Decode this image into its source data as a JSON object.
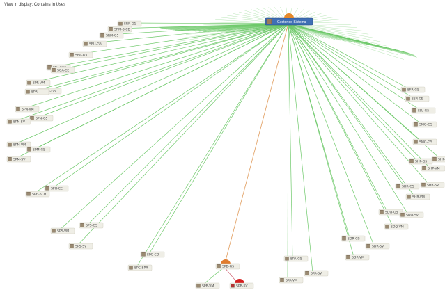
{
  "view": {
    "label": "View in display: Contains in Uses"
  },
  "root": {
    "label": "Gestor do Sistema",
    "status_color": "#e4892a",
    "box_color": "#3f6fb5"
  },
  "colors": {
    "edge": "#6ec96a",
    "edge_highlight": "#e3a46a",
    "edge_child": "#d06070",
    "status_orange": "#e07c2e",
    "status_red": "#d62020",
    "node_fill": "#efeee6",
    "node_border": "#c9c6b8"
  },
  "nodes": [
    {
      "id": "n1",
      "label": "SRR-G1"
    },
    {
      "id": "n2",
      "label": "SRM-8-CD"
    },
    {
      "id": "n3",
      "label": "SRM-G5"
    },
    {
      "id": "n4",
      "label": "SRU-G5"
    },
    {
      "id": "n5",
      "label": "SRA-G5"
    },
    {
      "id": "n6",
      "label": "SRA-VAF"
    },
    {
      "id": "n7",
      "label": "SGA-CE"
    },
    {
      "id": "n8",
      "label": "SPR-VM"
    },
    {
      "id": "n9",
      "label": "SPR-G5"
    },
    {
      "id": "n10",
      "label": "SPR"
    },
    {
      "id": "n11",
      "label": "SPN-VM"
    },
    {
      "id": "n12",
      "label": "SPN-G5"
    },
    {
      "id": "n13",
      "label": "SPN-SV"
    },
    {
      "id": "n14",
      "label": "SPM-VM"
    },
    {
      "id": "n15",
      "label": "SPM-G5"
    },
    {
      "id": "n16",
      "label": "SPM-SV"
    },
    {
      "id": "n17",
      "label": "SPH-CE"
    },
    {
      "id": "n18",
      "label": "SPH-SCH"
    },
    {
      "id": "n19",
      "label": "SPS-G5"
    },
    {
      "id": "n20",
      "label": "SPS-VM"
    },
    {
      "id": "n21",
      "label": "SPS-SV"
    },
    {
      "id": "n22",
      "label": "SPC-CD"
    },
    {
      "id": "n23",
      "label": "SPC-SPR"
    },
    {
      "id": "n24",
      "label": "SPB-G5",
      "status": "orange"
    },
    {
      "id": "n25",
      "label": "SPB-VM"
    },
    {
      "id": "n26",
      "label": "SPB-SV",
      "status": "red"
    },
    {
      "id": "n27",
      "label": "SPA-G5"
    },
    {
      "id": "n28",
      "label": "SPA-SV"
    },
    {
      "id": "n29",
      "label": "SPA-VM"
    },
    {
      "id": "n30",
      "label": "SDR-G5"
    },
    {
      "id": "n31",
      "label": "SDR-SV"
    },
    {
      "id": "n32",
      "label": "SDR-VM"
    },
    {
      "id": "n33",
      "label": "SDQ-G5"
    },
    {
      "id": "n34",
      "label": "SDQ-SV"
    },
    {
      "id": "n35",
      "label": "SDQ-VM"
    },
    {
      "id": "n36",
      "label": "SHR-G5"
    },
    {
      "id": "n37",
      "label": "SHR-SV"
    },
    {
      "id": "n38",
      "label": "SHR-VM"
    },
    {
      "id": "n39",
      "label": "SHP-G5"
    },
    {
      "id": "n40",
      "label": "SHP-SV"
    },
    {
      "id": "n41",
      "label": "SHP-VM"
    },
    {
      "id": "n42",
      "label": "SMG-G5"
    },
    {
      "id": "n43",
      "label": "SMG-G5"
    },
    {
      "id": "n44",
      "label": "SLV-G5"
    },
    {
      "id": "n45",
      "label": "SSR-CE"
    },
    {
      "id": "n46",
      "label": "SFR-G5"
    }
  ]
}
